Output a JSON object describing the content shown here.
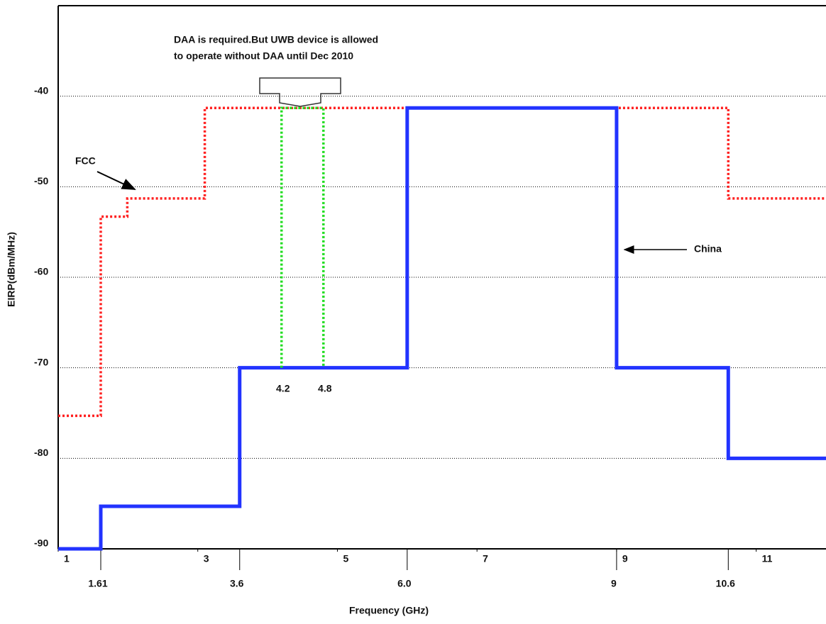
{
  "chart_data": {
    "type": "line",
    "x_label": "Frequency (GHz)",
    "y_label": "EIRP(dBm/MHz)",
    "xlim": [
      1,
      12
    ],
    "ylim": [
      -90,
      -30
    ],
    "xticks": [
      1,
      3,
      5,
      7,
      9,
      11
    ],
    "band_edges": [
      1.61,
      3.6,
      {
        "value": 6,
        "label": "6.0"
      },
      9,
      10.6
    ],
    "daa_edges": [
      4.2,
      4.8
    ],
    "yticks": [
      -90,
      -80,
      -70,
      -60,
      -50,
      -40
    ],
    "grid": true,
    "annotation": [
      "DAA is required.But UWB device is allowed",
      "to operate without DAA until Dec 2010"
    ],
    "series": [
      {
        "name": "FCC",
        "color": "#ff2020",
        "style": "dotted",
        "x": [
          1,
          1.61,
          1.61,
          1.99,
          1.99,
          3.1,
          3.1,
          10.6,
          10.6,
          12
        ],
        "values": [
          -75.3,
          -75.3,
          -53.3,
          -53.3,
          -51.3,
          -51.3,
          -41.3,
          -41.3,
          -51.3,
          -51.3
        ]
      },
      {
        "name": "China",
        "color": "#2233ff",
        "style": "solid",
        "x": [
          1,
          1.61,
          1.61,
          3.6,
          3.6,
          6,
          6,
          9,
          9,
          10.6,
          10.6,
          12
        ],
        "values": [
          -90,
          -90,
          -85.3,
          -85.3,
          -70,
          -70,
          -41.3,
          -41.3,
          -70,
          -70,
          -80,
          -80
        ]
      },
      {
        "color": "#22dd22",
        "style": "dotted",
        "x": [
          4.2,
          4.2,
          4.8,
          4.8
        ],
        "values": [
          -70,
          -41.3,
          -41.3,
          -70
        ]
      }
    ]
  }
}
